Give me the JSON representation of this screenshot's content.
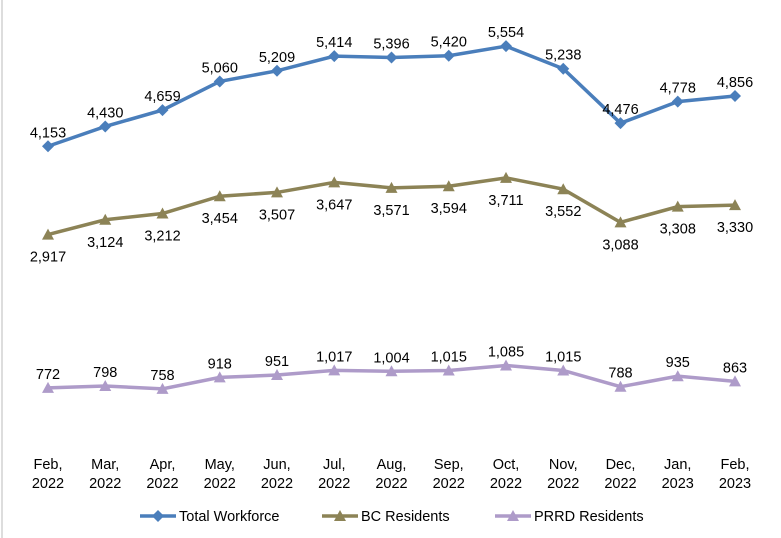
{
  "chart_data": {
    "type": "line",
    "categories": [
      "Feb, 2022",
      "Mar, 2022",
      "Apr, 2022",
      "May, 2022",
      "Jun, 2022",
      "Jul, 2022",
      "Aug, 2022",
      "Sep, 2022",
      "Oct, 2022",
      "Nov, 2022",
      "Dec, 2022",
      "Jan, 2023",
      "Feb, 2023"
    ],
    "series": [
      {
        "name": "Total Workforce",
        "color": "#4a7ebb",
        "marker": "diamond",
        "values": [
          4153,
          4430,
          4659,
          5060,
          5209,
          5414,
          5396,
          5420,
          5554,
          5238,
          4476,
          4778,
          4856
        ]
      },
      {
        "name": "BC Residents",
        "color": "#8c8356",
        "marker": "triangle",
        "values": [
          2917,
          3124,
          3212,
          3454,
          3507,
          3647,
          3571,
          3594,
          3711,
          3552,
          3088,
          3308,
          3330
        ]
      },
      {
        "name": "PRRD Residents",
        "color": "#ae9bc9",
        "marker": "triangle",
        "values": [
          772,
          798,
          758,
          918,
          951,
          1017,
          1004,
          1015,
          1085,
          1015,
          788,
          935,
          863
        ]
      }
    ],
    "ylim": [
      0,
      6200
    ],
    "grid": false,
    "legend": "bottom"
  }
}
